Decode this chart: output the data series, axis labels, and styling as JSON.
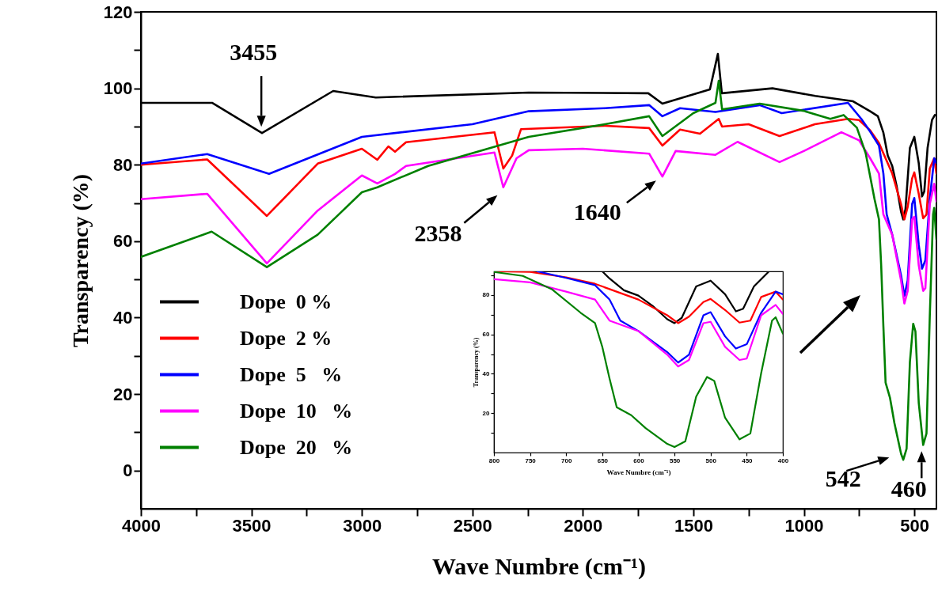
{
  "chart_data": [
    {
      "type": "line",
      "xlabel": "Wave Numbre (cm⁻¹)",
      "ylabel": "Transparency (%)",
      "xlim": [
        4000,
        400
      ],
      "xticks": [
        4000,
        {
          "value": 3750,
          "label": null
        },
        3500,
        {
          "value": 3250,
          "label": null
        },
        3000,
        {
          "value": 2750,
          "label": null
        },
        2500,
        {
          "value": 2250,
          "label": null
        },
        2000,
        {
          "value": 1750,
          "label": null
        },
        1500,
        {
          "value": 1250,
          "label": null
        },
        1000,
        {
          "value": 750,
          "label": null
        },
        500
      ],
      "ylim": [
        -10,
        120
      ],
      "yticks": [
        0,
        {
          "value": 10,
          "label": null
        },
        20,
        {
          "value": 30,
          "label": null
        },
        40,
        {
          "value": 50,
          "label": null
        },
        60,
        {
          "value": 70,
          "label": null
        },
        80,
        {
          "value": 90,
          "label": null
        },
        100,
        {
          "value": 110,
          "label": null
        },
        120
      ],
      "legend": "bottom left",
      "series": [
        {
          "name": "Dope  0 %",
          "color": "#000000",
          "x": [
            4000,
            3678,
            3452,
            3130,
            2937,
            2245,
            1704,
            1640,
            1425,
            1389,
            1371,
            1142,
            948,
            777,
            700,
            665,
            640,
            620,
            600,
            580,
            560,
            550,
            540,
            520,
            500,
            480,
            465,
            455,
            440,
            420,
            407
          ],
          "values": [
            96.2,
            96.2,
            88.3,
            99.3,
            97.6,
            98.9,
            98.7,
            96,
            99.7,
            109,
            98.7,
            100,
            98,
            96.6,
            94,
            92.7,
            88.4,
            82.4,
            79.7,
            74.4,
            67.7,
            65.7,
            68.4,
            84.4,
            87.3,
            80.4,
            71.7,
            73,
            84.4,
            91.7,
            93
          ]
        },
        {
          "name": "Dope  2 %",
          "color": "#ff0000",
          "x": [
            4000,
            3700,
            3430,
            3200,
            3000,
            2930,
            2880,
            2850,
            2800,
            2400,
            2360,
            2320,
            2280,
            1900,
            1700,
            1640,
            1560,
            1470,
            1385,
            1370,
            1250,
            1110,
            950,
            800,
            750,
            700,
            660,
            640,
            600,
            560,
            545,
            530,
            510,
            500,
            480,
            460,
            445,
            430,
            410,
            400
          ],
          "values": [
            80,
            81.4,
            66.6,
            80.3,
            84.2,
            81.3,
            84.8,
            83.4,
            85.9,
            88.5,
            79,
            82.4,
            89.3,
            90.2,
            89.6,
            85,
            89.2,
            88.1,
            92,
            90,
            90.6,
            87.5,
            90.6,
            92,
            91.7,
            89,
            85.7,
            83,
            77.7,
            69.7,
            65.7,
            69,
            76.4,
            78,
            72.4,
            66,
            67,
            79,
            81.7,
            77.7
          ]
        },
        {
          "name": "Dope  5   %",
          "color": "#0000ff",
          "x": [
            4000,
            3700,
            3420,
            3000,
            2500,
            2245,
            1900,
            1700,
            1640,
            1560,
            1400,
            1200,
            1100,
            800,
            740,
            700,
            660,
            640,
            625,
            600,
            560,
            545,
            530,
            510,
            500,
            480,
            465,
            450,
            430,
            410,
            400
          ],
          "values": [
            80.3,
            82.8,
            77.6,
            87.3,
            90.6,
            94,
            94.8,
            95.6,
            92.7,
            94.8,
            93.8,
            95.6,
            93.5,
            96.2,
            92,
            88.7,
            85,
            77.7,
            67,
            61.7,
            51,
            45.7,
            49.7,
            69.7,
            71.3,
            59,
            52.8,
            55,
            71,
            81.7,
            80.4
          ]
        },
        {
          "name": "Dope  10   %",
          "color": "#ff00ff",
          "x": [
            4000,
            3700,
            3430,
            3200,
            3000,
            2930,
            2850,
            2800,
            2400,
            2360,
            2300,
            2245,
            2000,
            1700,
            1640,
            1580,
            1400,
            1300,
            1110,
            1000,
            830,
            750,
            700,
            660,
            640,
            600,
            560,
            545,
            530,
            510,
            500,
            480,
            460,
            450,
            430,
            410,
            400
          ],
          "values": [
            71,
            72.4,
            54.2,
            68,
            77.2,
            75.1,
            77.6,
            79.7,
            83.2,
            74.1,
            81.7,
            83.8,
            84.2,
            82.9,
            76.9,
            83.6,
            82.6,
            86,
            80.7,
            83.6,
            88.5,
            86.4,
            81.7,
            77.7,
            67,
            61.7,
            49.7,
            43.7,
            47,
            65.7,
            66.4,
            53.7,
            47,
            47.7,
            69.7,
            75,
            70.4
          ]
        },
        {
          "name": "Dope  20   %",
          "color": "#008000",
          "x": [
            4000,
            3680,
            3430,
            3200,
            3000,
            2930,
            2700,
            2245,
            1900,
            1700,
            1640,
            1500,
            1400,
            1385,
            1370,
            1200,
            1000,
            880,
            820,
            760,
            720,
            680,
            660,
            650,
            640,
            630,
            610,
            590,
            560,
            550,
            535,
            520,
            505,
            495,
            480,
            460,
            445,
            430,
            415,
            410,
            400
          ],
          "values": [
            55.9,
            62.5,
            53.2,
            61.7,
            72.8,
            74.1,
            79.7,
            87.3,
            90.6,
            92.7,
            87.5,
            93.5,
            96.2,
            102,
            94.5,
            96,
            94.1,
            92,
            93,
            89.7,
            83,
            71,
            65.7,
            53.7,
            37.7,
            23,
            19,
            12.4,
            4.4,
            2.8,
            5.7,
            28.4,
            38.4,
            36.4,
            17.7,
            6.7,
            9.7,
            40.4,
            67,
            68.7,
            60.4
          ]
        }
      ],
      "annotations": [
        {
          "text": "3455",
          "x": 3455,
          "y": 88.3
        },
        {
          "text": "2358",
          "x": 2358,
          "y": 74.1
        },
        {
          "text": "1640",
          "x": 1640,
          "y": 76.9
        },
        {
          "text": "542",
          "x": 542,
          "y": 2.8
        },
        {
          "text": "460",
          "x": 460,
          "y": 6.7
        }
      ]
    },
    {
      "type": "line",
      "xlabel": "Wave Numbre (cm⁻¹)",
      "ylabel": "Transparency (%)",
      "xlim": [
        800,
        400
      ],
      "xticks": [
        800,
        750,
        700,
        650,
        600,
        550,
        500,
        450,
        400
      ],
      "ylim": [
        0,
        92
      ],
      "yticks": [
        {
          "value": 10,
          "label": null
        },
        20,
        {
          "value": 30,
          "label": null
        },
        40,
        {
          "value": 50,
          "label": null
        },
        60,
        {
          "value": 70,
          "label": null
        },
        80,
        {
          "value": 90,
          "label": null
        }
      ],
      "series": [
        {
          "color": "#000000",
          "x": [
            650,
            640,
            620,
            600,
            580,
            560,
            550,
            540,
            520,
            500,
            480,
            465,
            455,
            440,
            420
          ],
          "values": [
            92,
            88.4,
            82.4,
            79.7,
            74.4,
            67.7,
            65.7,
            68.4,
            84.4,
            87.3,
            80.4,
            71.7,
            73,
            84.4,
            91.7
          ]
        },
        {
          "color": "#ff0000",
          "x": [
            800,
            750,
            700,
            660,
            640,
            600,
            560,
            545,
            530,
            510,
            500,
            480,
            460,
            445,
            430,
            410,
            400
          ],
          "values": [
            92,
            91.7,
            89,
            85.7,
            83,
            77.7,
            69.7,
            65.7,
            69,
            76.4,
            78,
            72.4,
            66,
            67,
            79,
            81.7,
            77.7
          ]
        },
        {
          "color": "#0000ff",
          "x": [
            740,
            700,
            660,
            640,
            625,
            600,
            560,
            545,
            530,
            510,
            500,
            480,
            465,
            450,
            430,
            410,
            400
          ],
          "values": [
            92,
            88.7,
            85,
            77.7,
            67,
            61.7,
            51,
            45.7,
            49.7,
            69.7,
            71.3,
            59,
            52.8,
            55,
            71,
            81.7,
            80.4
          ]
        },
        {
          "color": "#ff00ff",
          "x": [
            800,
            750,
            700,
            660,
            640,
            600,
            560,
            545,
            530,
            510,
            500,
            480,
            460,
            450,
            430,
            410,
            400
          ],
          "values": [
            88,
            86.4,
            81.7,
            77.7,
            67,
            61.7,
            49.7,
            43.7,
            47,
            65.7,
            66.4,
            53.7,
            47,
            47.7,
            69.7,
            75,
            70.4
          ]
        },
        {
          "color": "#008000",
          "x": [
            800,
            760,
            720,
            680,
            660,
            650,
            640,
            630,
            610,
            590,
            560,
            550,
            535,
            520,
            505,
            495,
            480,
            460,
            445,
            430,
            415,
            410,
            400
          ],
          "values": [
            91.7,
            89.7,
            83,
            71,
            65.7,
            53.7,
            37.7,
            23,
            19,
            12.4,
            4.4,
            2.8,
            5.7,
            28.4,
            38.4,
            36.4,
            17.7,
            6.7,
            9.7,
            40.4,
            67,
            68.7,
            60.4
          ]
        }
      ]
    }
  ]
}
